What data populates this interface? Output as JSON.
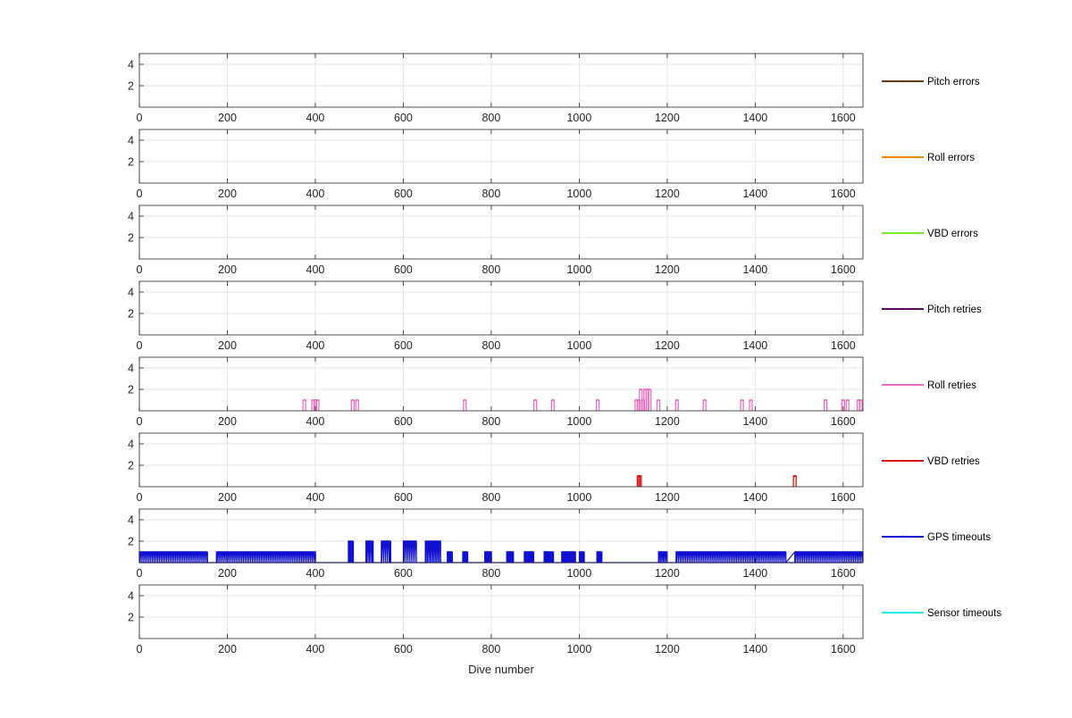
{
  "chart_data": {
    "type": "line",
    "xlabel": "Dive number",
    "xlim": [
      0,
      1645
    ],
    "ylim": [
      0,
      5
    ],
    "xticks": [
      0,
      200,
      400,
      600,
      800,
      1000,
      1200,
      1400,
      1600
    ],
    "yticks": [
      2,
      4
    ],
    "grid": true,
    "legend_placement": "right of each panel",
    "panels": [
      {
        "name": "Pitch errors",
        "color": "#6b3a0e",
        "points": []
      },
      {
        "name": "Roll errors",
        "color": "#f08a00",
        "points": []
      },
      {
        "name": "VBD errors",
        "color": "#7de62c",
        "points": []
      },
      {
        "name": "Pitch retries",
        "color": "#5a0a5a",
        "points": []
      },
      {
        "name": "Roll retries",
        "color": "#ee6fc0",
        "points": [
          [
            375,
            1
          ],
          [
            395,
            1
          ],
          [
            400,
            1
          ],
          [
            405,
            1
          ],
          [
            485,
            1
          ],
          [
            495,
            1
          ],
          [
            740,
            1
          ],
          [
            900,
            1
          ],
          [
            940,
            1
          ],
          [
            1042,
            1
          ],
          [
            1130,
            1
          ],
          [
            1135,
            1
          ],
          [
            1140,
            2
          ],
          [
            1145,
            1
          ],
          [
            1150,
            2
          ],
          [
            1155,
            2
          ],
          [
            1160,
            2
          ],
          [
            1180,
            1
          ],
          [
            1222,
            1
          ],
          [
            1285,
            1
          ],
          [
            1370,
            1
          ],
          [
            1390,
            1
          ],
          [
            1560,
            1
          ],
          [
            1600,
            1
          ],
          [
            1610,
            1
          ],
          [
            1635,
            1
          ],
          [
            1640,
            1
          ]
        ]
      },
      {
        "name": "VBD retries",
        "color": "#d41414",
        "points": [
          [
            1135,
            1
          ],
          [
            1138,
            1
          ],
          [
            1490,
            1
          ]
        ]
      },
      {
        "name": "GPS timeouts",
        "color": "#1010d0",
        "segments": [
          {
            "from": 0,
            "to": 155,
            "value": 1,
            "step": 4
          },
          {
            "from": 175,
            "to": 400,
            "value": 1,
            "step": 4
          },
          {
            "from": 475,
            "to": 485,
            "value": 2,
            "step": 2
          },
          {
            "from": 515,
            "to": 530,
            "value": 2,
            "step": 3
          },
          {
            "from": 550,
            "to": 570,
            "value": 2,
            "step": 4
          },
          {
            "from": 600,
            "to": 630,
            "value": 2,
            "step": 4
          },
          {
            "from": 650,
            "to": 685,
            "value": 2,
            "step": 3
          },
          {
            "from": 700,
            "to": 710,
            "value": 1,
            "step": 2
          },
          {
            "from": 735,
            "to": 745,
            "value": 1,
            "step": 2
          },
          {
            "from": 785,
            "to": 800,
            "value": 1,
            "step": 2
          },
          {
            "from": 835,
            "to": 850,
            "value": 1,
            "step": 2
          },
          {
            "from": 875,
            "to": 895,
            "value": 1,
            "step": 2
          },
          {
            "from": 920,
            "to": 940,
            "value": 1,
            "step": 2
          },
          {
            "from": 960,
            "to": 990,
            "value": 1,
            "step": 2
          },
          {
            "from": 1000,
            "to": 1010,
            "value": 1,
            "step": 2
          },
          {
            "from": 1040,
            "to": 1050,
            "value": 1,
            "step": 2
          },
          {
            "from": 1180,
            "to": 1200,
            "value": 1,
            "step": 3
          },
          {
            "from": 1220,
            "to": 1470,
            "value": 1,
            "step": 4
          },
          {
            "from": 1490,
            "to": 1645,
            "value": 1,
            "step": 4
          }
        ]
      },
      {
        "name": "Sensor timeouts",
        "color": "#22e6f0",
        "points": []
      }
    ]
  }
}
